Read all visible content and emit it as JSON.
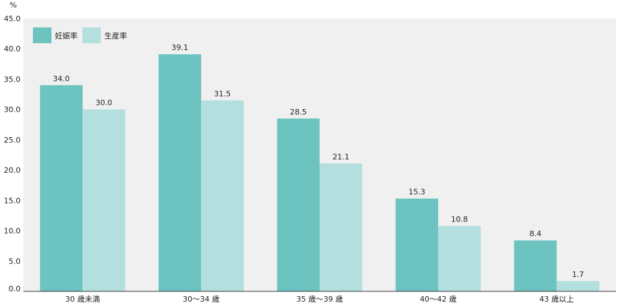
{
  "chart_data": {
    "type": "bar",
    "unit": "%",
    "categories": [
      "30 歳未満",
      "30～34 歳",
      "35 歳～39 歳",
      "40～42 歳",
      "43 歳以上"
    ],
    "series": [
      {
        "name": "妊娠率",
        "values": [
          34.0,
          39.1,
          28.5,
          15.3,
          8.4
        ],
        "labels": [
          "34.0",
          "39.1",
          "28.5",
          "15.3",
          "8.4"
        ],
        "color": "#6cc3c0"
      },
      {
        "name": "生産率",
        "values": [
          30.0,
          31.5,
          21.1,
          10.8,
          1.7
        ],
        "labels": [
          "30.0",
          "31.5",
          "21.1",
          "10.8",
          "1.7"
        ],
        "color": "#b3e0de"
      }
    ],
    "ylim": [
      0,
      45
    ],
    "yticks": [
      "0.0",
      "5.0",
      "10.0",
      "15.0",
      "20.0",
      "25.0",
      "30.0",
      "35.0",
      "40.0",
      "45.0"
    ],
    "grid": false,
    "legend_position": "top-left",
    "panel_color": "#f0f0f0"
  }
}
